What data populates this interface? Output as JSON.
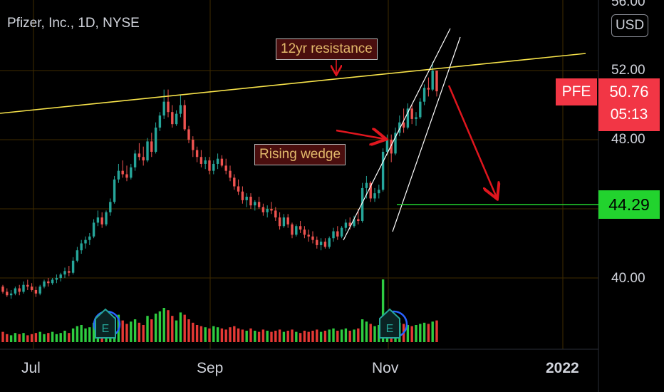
{
  "header": {
    "symbol_line": "Pfizer, Inc., 1D, NYSE",
    "currency_button": "USD"
  },
  "price_axis": {
    "top_partial": "56.00",
    "ticks": [
      "52.00",
      "48.00",
      "40.00"
    ]
  },
  "time_axis": {
    "ticks": [
      "Jul",
      "Sep",
      "Nov",
      "2022"
    ]
  },
  "annotations": {
    "resistance": "12yr resistance",
    "wedge": "Rising wedge"
  },
  "markers": {
    "symbol_tag": "PFE",
    "last_price": "50.76",
    "countdown": "05:13",
    "target_price": "44.29",
    "earnings_label": "E"
  },
  "colors": {
    "up": "#26a69a",
    "down": "#ef5350",
    "resistance": "#f7e34a",
    "target": "#22d32e",
    "arrow": "#e0161e",
    "tag": "#f23645"
  },
  "chart_data": {
    "type": "candlestick",
    "symbol": "PFE",
    "interval": "1D",
    "exchange": "NYSE",
    "ylim": [
      38.2,
      56.2
    ],
    "candles": [
      [
        39.5,
        39.6,
        39.1,
        39.2
      ],
      [
        39.2,
        39.4,
        38.9,
        39.0
      ],
      [
        39.0,
        39.3,
        38.8,
        39.1
      ],
      [
        39.1,
        39.5,
        39.0,
        39.4
      ],
      [
        39.4,
        39.6,
        39.0,
        39.2
      ],
      [
        39.2,
        39.8,
        39.1,
        39.6
      ],
      [
        39.6,
        39.9,
        39.3,
        39.5
      ],
      [
        39.5,
        39.7,
        39.2,
        39.3
      ],
      [
        39.3,
        39.5,
        38.9,
        39.1
      ],
      [
        39.1,
        39.6,
        39.0,
        39.5
      ],
      [
        39.5,
        39.9,
        39.4,
        39.8
      ],
      [
        39.8,
        40.0,
        39.5,
        39.7
      ],
      [
        39.7,
        40.0,
        39.6,
        39.9
      ],
      [
        39.9,
        40.2,
        39.7,
        40.0
      ],
      [
        40.0,
        40.3,
        39.8,
        40.2
      ],
      [
        40.2,
        40.6,
        40.0,
        40.4
      ],
      [
        40.4,
        40.7,
        40.1,
        40.3
      ],
      [
        40.3,
        41.2,
        40.2,
        41.0
      ],
      [
        41.0,
        41.8,
        40.9,
        41.6
      ],
      [
        41.6,
        42.2,
        41.4,
        42.0
      ],
      [
        42.0,
        42.4,
        41.7,
        42.2
      ],
      [
        42.2,
        42.6,
        41.9,
        42.4
      ],
      [
        42.4,
        43.4,
        42.3,
        43.2
      ],
      [
        43.2,
        43.9,
        43.0,
        43.5
      ],
      [
        43.5,
        43.8,
        42.9,
        43.1
      ],
      [
        43.1,
        43.9,
        43.0,
        43.8
      ],
      [
        43.8,
        44.6,
        43.6,
        44.4
      ],
      [
        44.4,
        45.9,
        44.3,
        45.7
      ],
      [
        45.7,
        46.6,
        45.5,
        46.2
      ],
      [
        46.2,
        46.8,
        45.8,
        46.0
      ],
      [
        46.0,
        46.5,
        45.6,
        45.8
      ],
      [
        45.8,
        46.6,
        45.7,
        46.4
      ],
      [
        46.4,
        47.4,
        46.2,
        47.2
      ],
      [
        47.2,
        47.8,
        46.8,
        47.0
      ],
      [
        47.0,
        47.6,
        46.5,
        46.8
      ],
      [
        46.8,
        48.1,
        46.7,
        47.9
      ],
      [
        47.9,
        48.4,
        47.0,
        47.3
      ],
      [
        47.3,
        49.0,
        47.2,
        48.7
      ],
      [
        48.7,
        49.6,
        48.5,
        49.4
      ],
      [
        49.4,
        50.9,
        49.2,
        50.2
      ],
      [
        50.2,
        50.9,
        49.3,
        49.6
      ],
      [
        49.6,
        50.0,
        48.7,
        48.9
      ],
      [
        48.9,
        49.7,
        48.8,
        49.5
      ],
      [
        49.5,
        50.6,
        49.3,
        50.0
      ],
      [
        50.0,
        50.3,
        48.5,
        48.6
      ],
      [
        48.6,
        48.8,
        47.8,
        48.0
      ],
      [
        48.0,
        48.2,
        47.0,
        47.4
      ],
      [
        47.4,
        47.6,
        46.7,
        47.0
      ],
      [
        47.0,
        47.4,
        46.4,
        46.6
      ],
      [
        46.6,
        47.0,
        46.3,
        46.8
      ],
      [
        46.8,
        47.0,
        46.0,
        46.2
      ],
      [
        46.2,
        46.8,
        46.0,
        46.6
      ],
      [
        46.6,
        47.2,
        46.3,
        46.9
      ],
      [
        46.9,
        47.1,
        46.4,
        46.5
      ],
      [
        46.5,
        46.9,
        46.0,
        46.2
      ],
      [
        46.2,
        46.5,
        45.6,
        45.8
      ],
      [
        45.8,
        46.0,
        45.1,
        45.3
      ],
      [
        45.3,
        45.7,
        44.8,
        45.0
      ],
      [
        45.0,
        45.3,
        44.3,
        44.5
      ],
      [
        44.5,
        44.9,
        44.1,
        44.7
      ],
      [
        44.7,
        44.9,
        44.0,
        44.2
      ],
      [
        44.2,
        44.5,
        43.9,
        44.4
      ],
      [
        44.4,
        44.7,
        44.0,
        44.1
      ],
      [
        44.1,
        44.3,
        43.6,
        43.8
      ],
      [
        43.8,
        44.2,
        43.5,
        44.0
      ],
      [
        44.0,
        44.4,
        43.7,
        43.9
      ],
      [
        43.9,
        44.1,
        43.3,
        43.5
      ],
      [
        43.5,
        43.8,
        42.8,
        43.0
      ],
      [
        43.0,
        43.7,
        42.9,
        43.5
      ],
      [
        43.5,
        43.7,
        42.9,
        43.1
      ],
      [
        43.1,
        43.2,
        42.3,
        42.5
      ],
      [
        42.5,
        43.1,
        42.4,
        43.0
      ],
      [
        43.0,
        43.3,
        42.6,
        42.8
      ],
      [
        42.8,
        43.0,
        42.3,
        42.5
      ],
      [
        42.5,
        42.8,
        42.1,
        42.4
      ],
      [
        42.4,
        42.7,
        42.0,
        42.2
      ],
      [
        42.2,
        42.4,
        41.7,
        41.9
      ],
      [
        41.9,
        42.3,
        41.6,
        42.1
      ],
      [
        42.1,
        42.3,
        41.7,
        41.8
      ],
      [
        41.8,
        42.4,
        41.7,
        42.3
      ],
      [
        42.3,
        42.9,
        42.1,
        42.7
      ],
      [
        42.7,
        43.0,
        42.2,
        42.4
      ],
      [
        42.4,
        43.0,
        42.3,
        42.9
      ],
      [
        42.9,
        43.4,
        42.7,
        43.2
      ],
      [
        43.2,
        43.5,
        42.8,
        43.0
      ],
      [
        43.0,
        43.6,
        42.9,
        43.4
      ],
      [
        43.4,
        44.0,
        43.1,
        43.3
      ],
      [
        43.3,
        45.5,
        43.2,
        45.2
      ],
      [
        45.2,
        45.9,
        44.6,
        45.5
      ],
      [
        45.5,
        45.6,
        44.4,
        44.6
      ],
      [
        44.6,
        45.2,
        44.4,
        44.9
      ],
      [
        44.9,
        45.4,
        44.6,
        45.1
      ],
      [
        45.1,
        47.5,
        45.0,
        47.3
      ],
      [
        47.3,
        48.3,
        47.1,
        48.0
      ],
      [
        48.0,
        48.3,
        46.7,
        47.2
      ],
      [
        47.2,
        48.7,
        47.1,
        48.4
      ],
      [
        48.4,
        49.4,
        48.2,
        49.0
      ],
      [
        49.0,
        49.8,
        48.4,
        48.7
      ],
      [
        48.7,
        50.1,
        48.6,
        49.8
      ],
      [
        49.8,
        50.0,
        48.9,
        49.2
      ],
      [
        49.2,
        49.6,
        48.8,
        49.3
      ],
      [
        49.3,
        50.4,
        49.2,
        50.2
      ],
      [
        50.2,
        51.2,
        50.0,
        51.0
      ],
      [
        51.0,
        51.6,
        50.5,
        50.9
      ],
      [
        50.9,
        52.5,
        50.8,
        52.0
      ],
      [
        52.0,
        52.0,
        50.5,
        50.8
      ]
    ],
    "volume": [
      0.9,
      0.7,
      0.6,
      0.8,
      0.7,
      0.8,
      0.6,
      0.7,
      0.8,
      0.9,
      0.7,
      0.8,
      0.9,
      0.7,
      0.8,
      1.0,
      0.8,
      1.2,
      1.4,
      1.5,
      1.2,
      1.3,
      1.7,
      1.9,
      1.4,
      1.6,
      1.8,
      2.2,
      2.4,
      1.9,
      1.6,
      1.8,
      2.0,
      1.7,
      1.5,
      2.3,
      2.0,
      2.5,
      2.7,
      3.0,
      2.8,
      2.3,
      1.9,
      2.6,
      2.4,
      2.0,
      1.7,
      1.5,
      1.4,
      1.3,
      1.2,
      1.4,
      1.3,
      1.2,
      1.1,
      1.3,
      1.4,
      1.2,
      1.1,
      1.0,
      1.2,
      1.0,
      0.9,
      1.1,
      1.0,
      0.9,
      1.0,
      1.1,
      0.9,
      1.0,
      1.1,
      0.9,
      0.8,
      1.0,
      0.9,
      1.0,
      1.1,
      0.9,
      1.0,
      1.1,
      1.2,
      1.0,
      1.1,
      1.2,
      1.0,
      1.1,
      1.2,
      2.0,
      1.8,
      1.6,
      1.4,
      1.5,
      5.5,
      2.4,
      2.0,
      1.8,
      1.7,
      1.6,
      1.5,
      1.4,
      1.5,
      1.6,
      1.7,
      1.6,
      1.8,
      1.9
    ],
    "series": [
      {
        "name": "PFE"
      }
    ],
    "last_price": 50.76,
    "target_price": 44.29,
    "resistance_line": {
      "label": "12yr resistance",
      "from": [
        0,
        49.6
      ],
      "to": [
        170,
        53.0
      ]
    },
    "pattern": "Rising wedge",
    "earnings_events_index": [
      29,
      91
    ],
    "grid": true
  }
}
